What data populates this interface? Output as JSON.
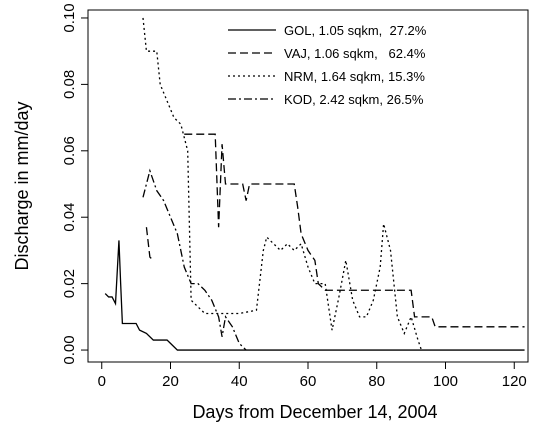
{
  "chart_data": {
    "type": "line",
    "xlabel": "Days from December 14, 2004",
    "ylabel": "Discharge in mm/day",
    "xlim": [
      -4,
      124
    ],
    "xticks": [
      0,
      20,
      40,
      60,
      80,
      100,
      120
    ],
    "ylim": [
      -0.0036,
      0.1024
    ],
    "yticks": [
      {
        "value": 0,
        "label": "0.00"
      },
      {
        "value": 0.02,
        "label": "0.02"
      },
      {
        "value": 0.04,
        "label": "0.04"
      },
      {
        "value": 0.06,
        "label": "0.06"
      },
      {
        "value": 0.08,
        "label": "0.08"
      },
      {
        "value": 0.1,
        "label": "0.10"
      }
    ],
    "legend": "upper right",
    "series": [
      {
        "name": "GOL, 1.05 sqkm,  27.2%",
        "color": "#000000",
        "dash": "solid",
        "x": [
          1,
          2,
          3,
          4,
          5,
          5.5,
          6,
          10,
          11,
          13,
          15,
          17,
          19,
          20,
          22,
          123
        ],
        "values": [
          0.017,
          0.016,
          0.016,
          0.014,
          0.033,
          0.02,
          0.008,
          0.008,
          0.006,
          0.005,
          0.003,
          0.003,
          0.003,
          0.002,
          0,
          0
        ]
      },
      {
        "name": "VAJ, 1.06 sqkm,   62.4%",
        "color": "#000000",
        "dash": "8,4",
        "x": [
          13,
          14,
          15,
          20,
          24,
          33,
          34,
          35,
          36,
          41,
          42,
          43,
          56,
          57,
          58,
          60,
          62,
          63,
          65,
          90,
          91,
          96,
          97,
          123
        ],
        "values": [
          0.037,
          0.028,
          0.027,
          null,
          0.065,
          0.065,
          0.037,
          0.062,
          0.05,
          0.05,
          0.045,
          0.05,
          0.05,
          0.043,
          0.035,
          0.03,
          0.027,
          0.02,
          0.018,
          0.018,
          0.01,
          0.01,
          0.007,
          0.007
        ]
      },
      {
        "name": "NRM, 1.64 sqkm, 15.3%",
        "color": "#000000",
        "dash": "2,3",
        "x": [
          12,
          13,
          16,
          17,
          19,
          21,
          23,
          25,
          26,
          28,
          30,
          35,
          40,
          45,
          47,
          48,
          50,
          52,
          54,
          56,
          58,
          60,
          62,
          65,
          67,
          69,
          71,
          73,
          75,
          77,
          79,
          81,
          82,
          84,
          86,
          88,
          90,
          92,
          93
        ],
        "values": [
          0.1,
          0.09,
          0.09,
          0.08,
          0.075,
          0.07,
          0.068,
          0.06,
          0.015,
          0.013,
          0.011,
          0.011,
          0.011,
          0.012,
          0.03,
          0.034,
          0.032,
          0.03,
          0.032,
          0.03,
          0.032,
          0.025,
          0.02,
          0.02,
          0.006,
          0.016,
          0.027,
          0.015,
          0.01,
          0.01,
          0.015,
          0.025,
          0.038,
          0.03,
          0.01,
          0.005,
          0.01,
          0.003,
          0
        ]
      },
      {
        "name": "KOD, 2.42 sqkm, 26.5%",
        "color": "#000000",
        "dash": "8,3,2,3",
        "x": [
          12,
          14,
          16,
          18,
          20,
          22,
          24,
          26,
          28,
          30,
          32,
          34,
          35,
          36,
          38,
          40,
          42
        ],
        "values": [
          0.046,
          0.054,
          0.048,
          0.045,
          0.04,
          0.035,
          0.025,
          0.02,
          0.02,
          0.018,
          0.015,
          0.01,
          0.004,
          0.01,
          0.007,
          0.002,
          0
        ]
      }
    ]
  }
}
